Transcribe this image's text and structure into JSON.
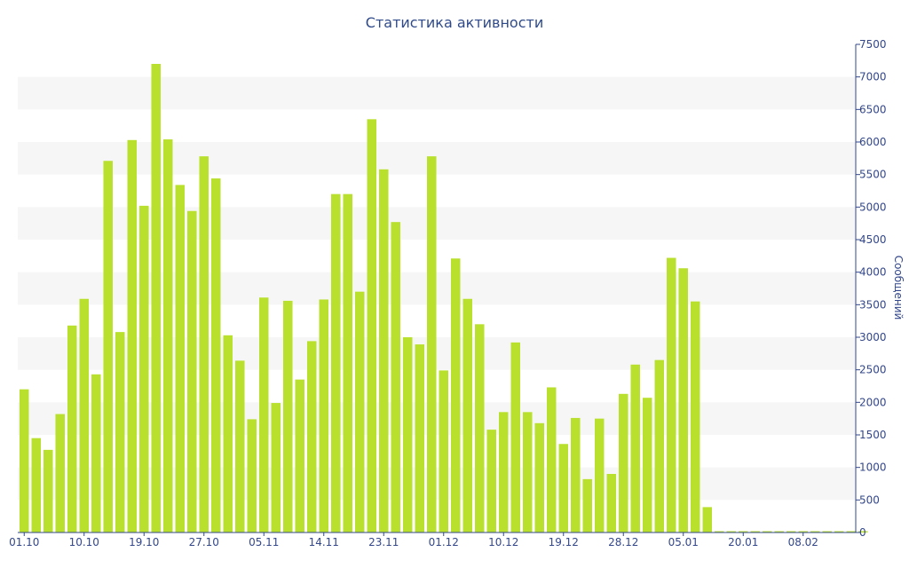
{
  "chart_data": {
    "type": "bar",
    "title": "Статистика активности",
    "ylabel": "Сообщений",
    "xlabel": "",
    "ylim": [
      0,
      7500
    ],
    "y_ticks": [
      0,
      500,
      1000,
      1500,
      2000,
      2500,
      3000,
      3500,
      4000,
      4500,
      5000,
      5500,
      6000,
      6500,
      7000,
      7500
    ],
    "x_tick_labels": [
      "01.10",
      "10.10",
      "19.10",
      "27.10",
      "05.11",
      "14.11",
      "23.11",
      "01.12",
      "10.12",
      "19.12",
      "28.12",
      "05.01",
      "20.01",
      "08.02"
    ],
    "y_axis_position": "right",
    "grid": "alternating horizontal bands",
    "legend": "none",
    "values": [
      2200,
      1450,
      1270,
      1820,
      3180,
      3590,
      2430,
      5710,
      3080,
      6030,
      5020,
      7200,
      6040,
      5340,
      4940,
      5780,
      5440,
      3030,
      2640,
      1740,
      3610,
      1990,
      3560,
      2350,
      2940,
      3580,
      5200,
      5200,
      3700,
      6350,
      5580,
      4770,
      3000,
      2890,
      5780,
      2490,
      4210,
      3590,
      3200,
      1580,
      1850,
      2920,
      1850,
      1680,
      2230,
      1360,
      1760,
      820,
      1750,
      900,
      2130,
      2580,
      2070,
      2650,
      4220,
      4060,
      3550,
      390,
      20,
      20,
      20,
      20,
      20,
      20,
      20,
      20,
      20,
      20,
      20,
      20,
      20
    ]
  },
  "colors": {
    "bar": "#b8e02c",
    "axis": "#33478a",
    "title": "#2f4a8a",
    "band": "#f6f6f6"
  }
}
